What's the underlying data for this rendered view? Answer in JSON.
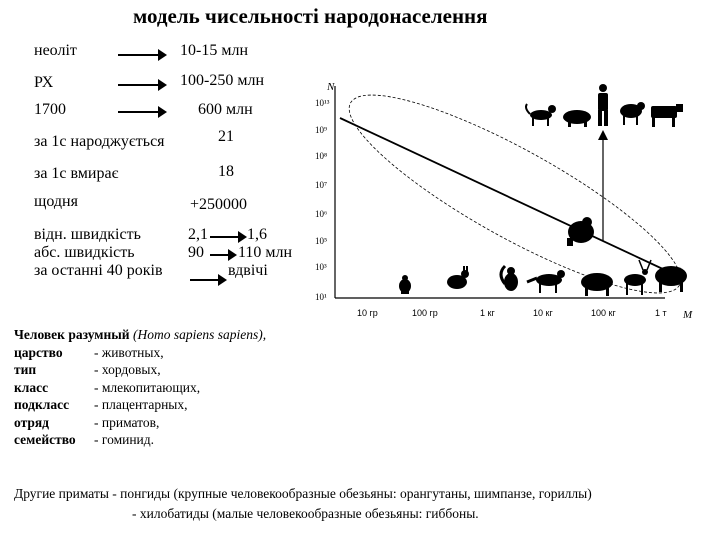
{
  "title": "модель чисельності народонаселення",
  "stats": [
    {
      "label": "неоліт",
      "value": "10-15 млн",
      "arrow": true
    },
    {
      "label": "РХ",
      "value": "100-250 млн",
      "arrow": true
    },
    {
      "label": "1700",
      "value": "600 млн",
      "arrow": true
    },
    {
      "label": "за 1с народжується",
      "value": "21",
      "arrow": false
    },
    {
      "label": "за 1с вмирає",
      "value": "18",
      "arrow": false
    },
    {
      "label": "щодня",
      "value": "+250000",
      "arrow": false
    }
  ],
  "speeds": {
    "rel_label": "відн. швидкість",
    "abs_label": "абс. швидкість",
    "period_label": "за останні 40 років",
    "rel_from": "2,1",
    "rel_to": "1,6",
    "abs_from": "90",
    "abs_to": "110 млн",
    "period_value": "вдвічі"
  },
  "chart_data": {
    "type": "scatter",
    "ylabel": "N",
    "xlabel": "M",
    "y_ticks": [
      "10¹³",
      "10⁹",
      "10⁸",
      "10⁷",
      "10⁶",
      "10⁵",
      "10³",
      "10¹"
    ],
    "x_ticks": [
      "10 гр",
      "100 гр",
      "1 кг",
      "10 кг",
      "100 кг",
      "1 т"
    ],
    "icons": [
      "mouse-icon",
      "rabbit-icon",
      "squirrel-icon",
      "fox-icon",
      "boar-icon",
      "deer-icon",
      "bison-icon",
      "cat-icon",
      "pig-icon",
      "human-icon",
      "sheep-icon",
      "cow-icon",
      "gorilla-icon"
    ]
  },
  "classification": {
    "species_name": "Человек разумный",
    "species_latin": "(Homo sapiens sapiens),",
    "rows": [
      {
        "rank": "царство",
        "value": "- животных,"
      },
      {
        "rank": "тип",
        "value": "- хордовых,"
      },
      {
        "rank": "класс",
        "value": "- млекопитающих,"
      },
      {
        "rank": "подкласс",
        "value": "- плацентарных,"
      },
      {
        "rank": "отряд",
        "value": "- приматов,"
      },
      {
        "rank": "семейство",
        "value": "- гоминид."
      }
    ]
  },
  "other_primates": {
    "label": "Другие приматы",
    "line1": "- понгиды (крупные человекообразные обезьяны: орангутаны, шимпанзе, гориллы)",
    "line2": "- хилобатиды (малые человекообразные обезьяны: гиббоны."
  }
}
